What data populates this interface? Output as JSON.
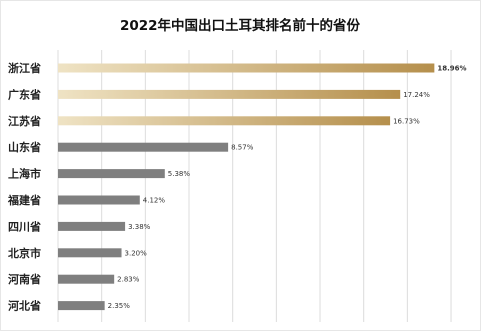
{
  "chart_data": {
    "type": "bar",
    "orientation": "horizontal",
    "title": "2022年中国出口土耳其排名前十的省份",
    "categories": [
      "浙江省",
      "广东省",
      "江苏省",
      "山东省",
      "上海市",
      "福建省",
      "四川省",
      "北京市",
      "河南省",
      "河北省"
    ],
    "values": [
      18.96,
      17.24,
      16.73,
      8.57,
      5.38,
      4.12,
      3.38,
      3.2,
      2.83,
      2.35
    ],
    "value_labels": [
      "18.96%",
      "17.24%",
      "16.73%",
      "8.57%",
      "5.38%",
      "4.12%",
      "3.38%",
      "3.20%",
      "2.83%",
      "2.35%"
    ],
    "xlim": [
      0,
      20
    ],
    "grid": "vertical",
    "legend": "none",
    "colors": {
      "top3_bar_start": "#efe3c4",
      "top3_bar_end": "#b58f4c",
      "other_bar": "#7f7f7f",
      "highlight_label": "#c00000",
      "gridline": "#dcdcdc"
    }
  }
}
